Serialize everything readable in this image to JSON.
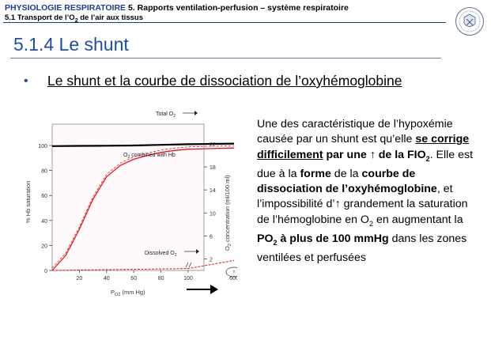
{
  "header": {
    "course": "PHYSIOLOGIE RESPIRATOIRE",
    "chapter": "5. Rapports ventilation-perfusion – système respiratoire",
    "section": "5.1 Transport de l’O",
    "section_sub": "2",
    "section_end": " de l’air aux tissus"
  },
  "title": "5.1.4 Le shunt",
  "subtitle": "Le shunt et la courbe de dissociation de l’oxyhémoglobine",
  "text": {
    "p1": "Une des caractéristique de l’hypoxémie causée par un shunt est qu’elle ",
    "p2": "se corrige difficilement",
    "p3": " par une ↑ de la FIO",
    "p3_sub": "2",
    "p4": ". Elle est due à la ",
    "p5": "forme",
    "p6": " de la ",
    "p7": "courbe de dissociation de l’oxyhémoglobine",
    "p8": ", et l’impossibilité d’↑ grandement la saturation de l’hémoglobine en O",
    "p8_sub": "2",
    "p9": " en augmentant la ",
    "p10": "PO",
    "p10_sub": "2",
    "p11": " à plus de 100 mmHg",
    "p12": " dans les zones ventilées et perfusées"
  },
  "chart_data": {
    "type": "line",
    "x_label": "P",
    "x_label_sub": "O2",
    "x_label_unit": " (mm Hg)",
    "y_label": "% Hb saturation",
    "y2_label": "O",
    "y2_label_sub": "2",
    "y2_label_rest": " concentration (ml/100 ml)",
    "x_ticks": [
      "20",
      "40",
      "60",
      "80",
      "100",
      "600"
    ],
    "y_ticks": [
      "0",
      "20",
      "40",
      "60",
      "80",
      "100"
    ],
    "y2_ticks": [
      "2",
      "6",
      "10",
      "14",
      "18",
      "22"
    ],
    "series": [
      {
        "name": "Total O2",
        "label": "Total O",
        "label_sub": "2",
        "color": "#000000",
        "points": [
          [
            0,
            99.5
          ],
          [
            20,
            99.7
          ],
          [
            40,
            99.8
          ],
          [
            60,
            100
          ],
          [
            80,
            100.5
          ],
          [
            100,
            101
          ],
          [
            600,
            101.5
          ]
        ]
      },
      {
        "name": "O2 combined with Hb",
        "label": "O",
        "label_sub": "2",
        "label_rest": " combined with Hb",
        "color": "#e01b24",
        "points": [
          [
            0,
            0
          ],
          [
            10,
            12
          ],
          [
            20,
            33
          ],
          [
            30,
            57
          ],
          [
            40,
            75
          ],
          [
            50,
            84
          ],
          [
            60,
            89
          ],
          [
            70,
            92
          ],
          [
            80,
            94.5
          ],
          [
            90,
            96
          ],
          [
            100,
            97
          ],
          [
            600,
            98
          ]
        ]
      },
      {
        "name": "Dissolved O2",
        "label": "Dissolved O",
        "label_sub": "2",
        "color": "#e01b24",
        "points": [
          [
            0,
            0
          ],
          [
            100,
            1.5
          ],
          [
            600,
            8
          ]
        ]
      }
    ]
  }
}
